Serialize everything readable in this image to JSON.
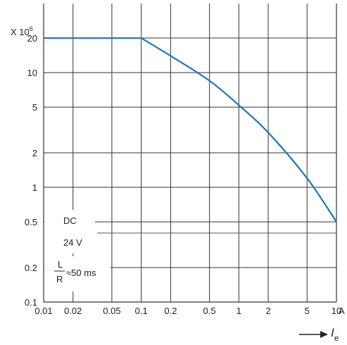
{
  "chart_data": {
    "type": "line",
    "multiplier_label": "X 10",
    "multiplier_exp": "6",
    "x_unit": "A",
    "x_axis_symbol": "I",
    "x_axis_subscript": "e",
    "x_scale": "log",
    "y_scale": "log",
    "xlim": [
      0.01,
      10
    ],
    "ylim": [
      0.1,
      40
    ],
    "grid": true,
    "x_ticks": [
      {
        "value": 0.01,
        "label": "0.01"
      },
      {
        "value": 0.02,
        "label": "0.02"
      },
      {
        "value": 0.05,
        "label": "0.05"
      },
      {
        "value": 0.1,
        "label": "0.1"
      },
      {
        "value": 0.2,
        "label": "0.2"
      },
      {
        "value": 0.5,
        "label": "0.5"
      },
      {
        "value": 1,
        "label": "1"
      },
      {
        "value": 2,
        "label": "2"
      },
      {
        "value": 5,
        "label": "5"
      },
      {
        "value": 10,
        "label": "10"
      }
    ],
    "y_ticks": [
      {
        "value": 0.1,
        "label": "0.1"
      },
      {
        "value": 0.2,
        "label": "0.2"
      },
      {
        "value": 0.5,
        "label": "0.5"
      },
      {
        "value": 1,
        "label": "1"
      },
      {
        "value": 2,
        "label": "2"
      },
      {
        "value": 5,
        "label": "5"
      },
      {
        "value": 10,
        "label": "10"
      },
      {
        "value": 20,
        "label": "20"
      }
    ],
    "series": [
      {
        "color": "#1f77b4",
        "x": [
          0.01,
          0.1,
          0.2,
          0.5,
          1,
          2,
          5,
          10
        ],
        "y": [
          20,
          20,
          14,
          8.5,
          5.2,
          3,
          1.2,
          0.5
        ]
      }
    ],
    "annotations": {
      "dc": "DC",
      "voltage": "24 V",
      "l_over_r_num": "L",
      "l_over_r_den": "R",
      "l_over_r_value": "≈50 ms"
    }
  }
}
